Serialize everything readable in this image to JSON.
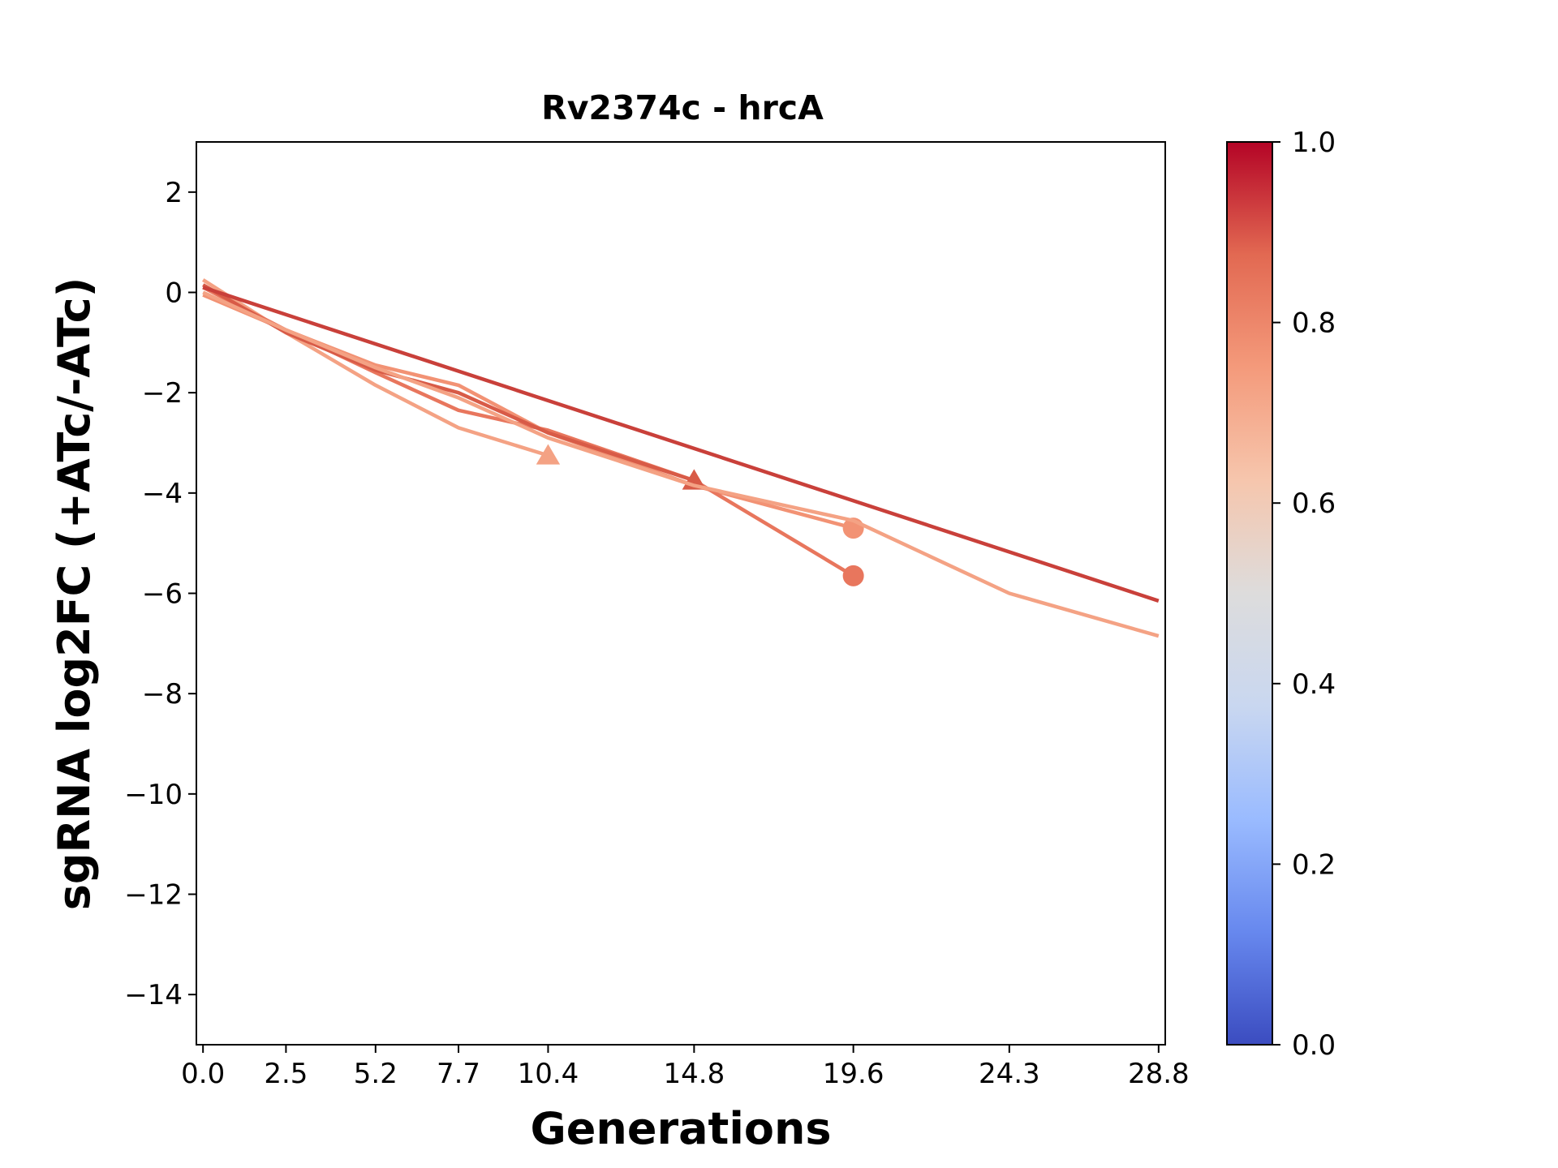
{
  "chart_data": {
    "type": "line",
    "title": "Rv2374c - hrcA",
    "xlabel": "Generations",
    "ylabel": "sgRNA log2FC (+ATc/-ATc)",
    "xlim": [
      -0.2,
      29.0
    ],
    "ylim": [
      -15,
      3
    ],
    "x_ticks": [
      0.0,
      2.5,
      5.2,
      7.7,
      10.4,
      14.8,
      19.6,
      24.3,
      28.8
    ],
    "x_tick_labels": [
      "0.0",
      "2.5",
      "5.2",
      "7.7",
      "10.4",
      "14.8",
      "19.6",
      "24.3",
      "28.8"
    ],
    "y_ticks": [
      2,
      0,
      -2,
      -4,
      -6,
      -8,
      -10,
      -12,
      -14
    ],
    "y_tick_labels": [
      "2",
      "0",
      "−2",
      "−4",
      "−6",
      "−8",
      "−10",
      "−12",
      "−14"
    ],
    "grid": false,
    "legend": "none",
    "series": [
      {
        "color": "#f4a284",
        "x": [
          0.0,
          2.5,
          5.2,
          7.7,
          10.4
        ],
        "y": [
          0.25,
          -0.8,
          -1.85,
          -2.7,
          -3.25
        ],
        "end_marker": "triangle"
      },
      {
        "color": "#f29274",
        "x": [
          0.0,
          2.5,
          5.2,
          7.7,
          10.4,
          14.8,
          19.6
        ],
        "y": [
          -0.05,
          -0.75,
          -1.45,
          -1.85,
          -2.8,
          -3.85,
          -4.7
        ],
        "end_marker": "circle"
      },
      {
        "color": "#e8765d",
        "x": [
          0.0,
          2.5,
          5.2,
          7.7,
          10.4,
          14.8,
          19.6
        ],
        "y": [
          0.1,
          -0.75,
          -1.6,
          -2.35,
          -2.75,
          -3.75,
          -5.65
        ],
        "end_marker": "circle"
      },
      {
        "color": "#d85b47",
        "x": [
          0.0,
          2.5,
          5.2,
          7.7,
          10.4,
          14.8
        ],
        "y": [
          0.15,
          -0.8,
          -1.55,
          -2.0,
          -2.8,
          -3.75
        ],
        "end_marker": "triangle"
      },
      {
        "color": "#f4a284",
        "x": [
          0.0,
          2.5,
          5.2,
          7.7,
          10.4,
          14.8,
          19.6,
          24.3,
          28.8
        ],
        "y": [
          0.0,
          -0.75,
          -1.5,
          -2.1,
          -2.9,
          -3.85,
          -4.55,
          -6.0,
          -6.85
        ],
        "end_marker": "none"
      },
      {
        "color": "#c9403a",
        "x": [
          0.0,
          28.8
        ],
        "y": [
          0.1,
          -6.15
        ],
        "end_marker": "none"
      }
    ],
    "colorbar": {
      "colormap": "coolwarm",
      "range": [
        0.0,
        1.0
      ],
      "ticks": [
        "0.0",
        "0.2",
        "0.4",
        "0.6",
        "0.8",
        "1.0"
      ],
      "stops": [
        "#3b4cc0",
        "#6788ee",
        "#9abbff",
        "#c9d7f0",
        "#dddcdc",
        "#f6c6ad",
        "#f49a7b",
        "#e26952",
        "#b40426"
      ]
    }
  }
}
